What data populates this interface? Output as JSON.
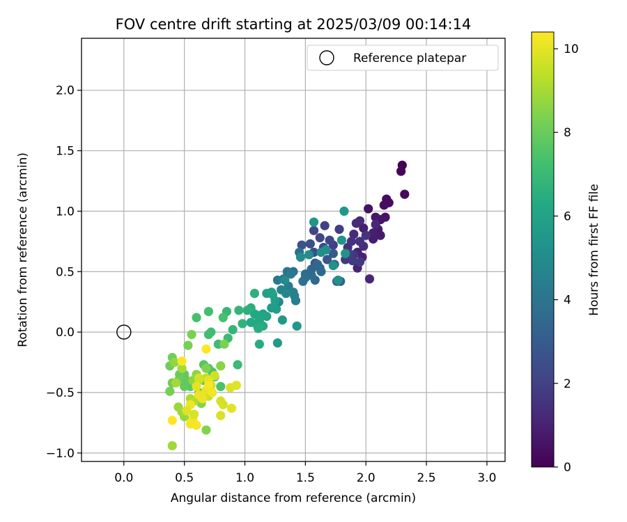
{
  "chart_data": {
    "type": "scatter",
    "title": "FOV centre drift starting at 2025/03/09 00:14:14",
    "xlabel": "Angular distance from reference (arcmin)",
    "ylabel": "Rotation from reference (arcmin)",
    "xlim": [
      -0.35,
      3.15
    ],
    "ylim": [
      -1.07,
      2.43
    ],
    "xticks": [
      "0.0",
      "0.5",
      "1.0",
      "1.5",
      "2.0",
      "2.5",
      "3.0"
    ],
    "yticks": [
      "−1.0",
      "−0.5",
      "0.0",
      "0.5",
      "1.0",
      "1.5",
      "2.0"
    ],
    "grid": true,
    "legend": {
      "location": "top-right",
      "label": "Reference platepar"
    },
    "reference_point": {
      "x": 0.0,
      "y": 0.0
    },
    "colorbar": {
      "label": "Hours from first FF file",
      "range": [
        0,
        10.4
      ],
      "ticks": [
        "0",
        "2",
        "4",
        "6",
        "8",
        "10"
      ],
      "colormap": "viridis"
    },
    "series": [
      {
        "points": [
          [
            2.3,
            1.38,
            0.0
          ],
          [
            2.29,
            1.33,
            0.1
          ],
          [
            2.32,
            1.14,
            0.2
          ],
          [
            2.17,
            1.1,
            0.3
          ],
          [
            2.19,
            1.07,
            0.35
          ],
          [
            2.15,
            1.05,
            0.4
          ],
          [
            2.02,
            1.02,
            0.5
          ],
          [
            2.12,
            0.93,
            0.55
          ],
          [
            2.16,
            0.95,
            0.6
          ],
          [
            2.08,
            0.95,
            0.65
          ],
          [
            2.1,
            0.85,
            0.7
          ],
          [
            2.12,
            0.8,
            0.75
          ],
          [
            2.06,
            0.77,
            0.8
          ],
          [
            1.98,
            0.86,
            0.85
          ],
          [
            2.06,
            0.82,
            0.9
          ],
          [
            1.93,
            0.66,
            0.95
          ],
          [
            1.97,
            0.62,
            1.0
          ],
          [
            1.93,
            0.53,
            1.05
          ],
          [
            2.03,
            0.44,
            1.1
          ],
          [
            2.08,
            0.89,
            1.15
          ],
          [
            1.95,
            0.92,
            1.2
          ],
          [
            1.92,
            0.9,
            1.25
          ],
          [
            1.9,
            0.81,
            1.3
          ],
          [
            1.98,
            0.71,
            1.35
          ],
          [
            1.85,
            0.7,
            1.4
          ],
          [
            1.88,
            0.75,
            1.45
          ],
          [
            1.95,
            0.75,
            1.5
          ],
          [
            2.0,
            0.8,
            1.55
          ],
          [
            1.9,
            0.64,
            1.6
          ],
          [
            1.83,
            0.6,
            1.7
          ],
          [
            1.95,
            0.58,
            1.75
          ],
          [
            1.89,
            0.59,
            1.8
          ],
          [
            1.86,
            0.65,
            1.85
          ],
          [
            1.78,
            0.85,
            1.9
          ],
          [
            1.73,
            0.72,
            1.95
          ],
          [
            1.66,
            0.88,
            2.0
          ],
          [
            1.57,
            0.84,
            2.1
          ],
          [
            1.62,
            0.78,
            2.15
          ],
          [
            1.7,
            0.76,
            2.2
          ],
          [
            1.65,
            0.7,
            2.3
          ],
          [
            1.57,
            0.66,
            2.4
          ],
          [
            1.54,
            0.73,
            2.5
          ],
          [
            1.47,
            0.72,
            2.6
          ],
          [
            1.58,
            0.57,
            2.7
          ],
          [
            1.68,
            0.6,
            2.8
          ],
          [
            1.73,
            0.65,
            2.9
          ],
          [
            1.74,
            0.56,
            3.0
          ],
          [
            1.76,
            0.42,
            3.1
          ],
          [
            1.79,
            0.42,
            3.2
          ],
          [
            1.62,
            0.53,
            3.3
          ],
          [
            1.55,
            0.52,
            3.4
          ],
          [
            1.6,
            0.56,
            3.45
          ],
          [
            1.63,
            0.5,
            3.5
          ],
          [
            1.58,
            0.43,
            3.55
          ],
          [
            1.55,
            0.47,
            3.6
          ],
          [
            1.5,
            0.48,
            3.65
          ],
          [
            1.45,
            0.66,
            3.7
          ],
          [
            1.5,
            0.45,
            3.8
          ],
          [
            1.48,
            0.42,
            3.85
          ],
          [
            1.4,
            0.5,
            3.9
          ],
          [
            1.35,
            0.5,
            4.0
          ],
          [
            1.32,
            0.44,
            4.1
          ],
          [
            1.27,
            0.43,
            4.15
          ],
          [
            1.38,
            0.48,
            4.2
          ],
          [
            1.36,
            0.38,
            4.3
          ],
          [
            1.42,
            0.26,
            4.4
          ],
          [
            1.41,
            0.3,
            4.5
          ],
          [
            1.4,
            0.33,
            4.55
          ],
          [
            1.3,
            0.35,
            4.6
          ],
          [
            1.28,
            0.25,
            4.7
          ],
          [
            1.34,
            0.32,
            4.8
          ],
          [
            1.33,
            0.43,
            4.9
          ],
          [
            1.46,
            0.62,
            5.0
          ],
          [
            1.53,
            0.64,
            5.05
          ],
          [
            1.63,
            0.66,
            5.1
          ],
          [
            1.67,
            0.68,
            5.15
          ],
          [
            1.73,
            0.55,
            5.2
          ],
          [
            1.77,
            0.43,
            5.25
          ],
          [
            1.83,
            0.65,
            5.3
          ],
          [
            1.8,
            0.76,
            5.35
          ],
          [
            1.57,
            0.91,
            5.4
          ],
          [
            1.82,
            1.0,
            5.45
          ],
          [
            1.43,
            0.05,
            5.5
          ],
          [
            1.31,
            0.1,
            5.55
          ],
          [
            1.27,
            -0.09,
            5.6
          ],
          [
            1.22,
            0.2,
            5.7
          ],
          [
            1.26,
            0.19,
            5.75
          ],
          [
            1.25,
            0.26,
            5.8
          ],
          [
            1.23,
            0.31,
            5.85
          ],
          [
            1.18,
            0.32,
            5.9
          ],
          [
            1.22,
            0.33,
            5.95
          ],
          [
            1.15,
            0.15,
            6.0
          ],
          [
            1.18,
            0.13,
            6.05
          ],
          [
            1.1,
            0.14,
            6.1
          ],
          [
            1.12,
            0.1,
            6.15
          ],
          [
            1.08,
            0.15,
            6.2
          ],
          [
            1.05,
            0.08,
            6.25
          ],
          [
            1.1,
            0.06,
            6.3
          ],
          [
            1.15,
            0.05,
            6.35
          ],
          [
            1.12,
            -0.1,
            6.4
          ],
          [
            1.11,
            0.03,
            6.45
          ],
          [
            1.05,
            0.2,
            6.5
          ],
          [
            1.02,
            0.18,
            6.55
          ],
          [
            1.08,
            0.32,
            6.6
          ],
          [
            0.98,
            0.07,
            6.7
          ],
          [
            0.95,
            0.18,
            6.8
          ],
          [
            0.9,
            0.02,
            6.85
          ],
          [
            0.85,
            0.17,
            6.9
          ],
          [
            0.94,
            -0.27,
            7.0
          ],
          [
            0.86,
            -0.05,
            7.05
          ],
          [
            0.78,
            -0.1,
            7.1
          ],
          [
            0.72,
            0.0,
            7.15
          ],
          [
            0.7,
            -0.02,
            7.2
          ],
          [
            0.7,
            0.17,
            7.25
          ],
          [
            0.6,
            0.12,
            7.3
          ],
          [
            0.82,
            0.12,
            7.35
          ],
          [
            0.8,
            -0.45,
            7.4
          ],
          [
            0.75,
            -0.37,
            7.45
          ],
          [
            0.73,
            -0.33,
            7.5
          ],
          [
            0.7,
            -0.3,
            7.55
          ],
          [
            0.66,
            -0.27,
            7.6
          ],
          [
            0.66,
            -0.4,
            7.65
          ],
          [
            0.62,
            -0.5,
            7.7
          ],
          [
            0.55,
            -0.45,
            7.75
          ],
          [
            0.52,
            -0.4,
            7.8
          ],
          [
            0.5,
            -0.45,
            7.85
          ],
          [
            0.5,
            -0.35,
            7.9
          ],
          [
            0.46,
            -0.35,
            7.95
          ],
          [
            0.45,
            -0.4,
            8.0
          ],
          [
            0.4,
            -0.42,
            8.05
          ],
          [
            0.38,
            -0.28,
            8.1
          ],
          [
            0.4,
            -0.21,
            8.15
          ],
          [
            0.38,
            -0.49,
            8.2
          ],
          [
            0.53,
            -0.11,
            8.25
          ],
          [
            0.56,
            -0.02,
            8.3
          ],
          [
            0.83,
            -0.1,
            8.35
          ],
          [
            0.68,
            -0.3,
            8.4
          ],
          [
            0.68,
            -0.81,
            8.45
          ],
          [
            0.64,
            -0.59,
            8.5
          ],
          [
            0.8,
            -0.28,
            8.55
          ],
          [
            0.6,
            -0.35,
            8.6
          ],
          [
            0.57,
            -0.4,
            8.65
          ],
          [
            0.42,
            -0.25,
            8.7
          ],
          [
            0.5,
            -0.7,
            8.75
          ],
          [
            0.45,
            -0.62,
            8.8
          ],
          [
            0.48,
            -0.66,
            8.85
          ],
          [
            0.4,
            -0.94,
            8.9
          ],
          [
            0.43,
            -0.42,
            8.95
          ],
          [
            0.48,
            -0.3,
            9.0
          ],
          [
            0.55,
            -0.55,
            9.1
          ],
          [
            0.58,
            -0.57,
            9.2
          ],
          [
            0.62,
            -0.4,
            9.3
          ],
          [
            0.68,
            -0.38,
            9.4
          ],
          [
            0.65,
            -0.52,
            9.5
          ],
          [
            0.7,
            -0.53,
            9.55
          ],
          [
            0.72,
            -0.44,
            9.6
          ],
          [
            0.75,
            -0.36,
            9.65
          ],
          [
            0.8,
            -0.57,
            9.7
          ],
          [
            0.82,
            -0.6,
            9.75
          ],
          [
            0.8,
            -0.69,
            9.8
          ],
          [
            0.88,
            -0.46,
            9.85
          ],
          [
            0.93,
            -0.44,
            9.9
          ],
          [
            0.89,
            -0.63,
            9.95
          ],
          [
            0.7,
            -0.4,
            10.0
          ],
          [
            0.68,
            -0.48,
            10.05
          ],
          [
            0.62,
            -0.52,
            10.1
          ],
          [
            0.55,
            -0.6,
            10.15
          ],
          [
            0.57,
            -0.72,
            10.2
          ],
          [
            0.55,
            -0.76,
            10.25
          ],
          [
            0.6,
            -0.77,
            10.3
          ],
          [
            0.48,
            -0.24,
            10.35
          ],
          [
            0.4,
            -0.73,
            10.4
          ],
          [
            0.68,
            -0.14,
            10.4
          ],
          [
            0.7,
            -0.44,
            10.3
          ],
          [
            0.73,
            -0.5,
            10.2
          ],
          [
            0.65,
            -0.55,
            10.1
          ],
          [
            0.6,
            -0.45,
            10.0
          ],
          [
            0.52,
            -0.65,
            9.9
          ],
          [
            0.58,
            -0.68,
            9.8
          ],
          [
            0.62,
            -0.38,
            9.7
          ]
        ]
      }
    ]
  }
}
